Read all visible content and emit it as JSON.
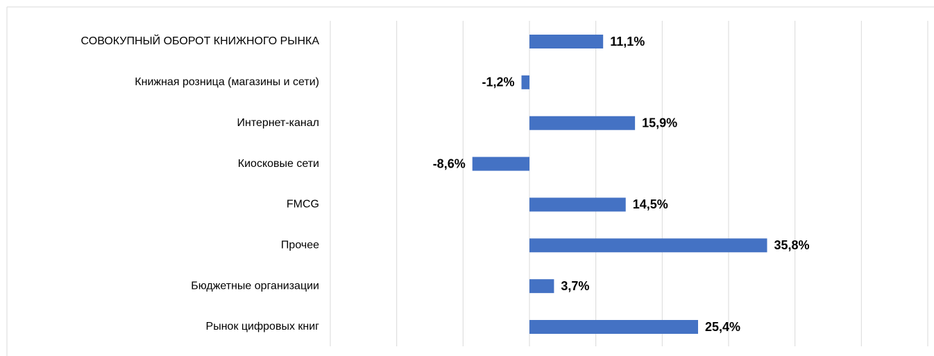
{
  "chart_data": {
    "type": "bar",
    "orientation": "horizontal",
    "categories": [
      "СОВОКУПНЫЙ ОБОРОТ КНИЖНОГО РЫНКА",
      "Книжная розница (магазины и сети)",
      "Интернет-канал",
      "Киосковые сети",
      "FMCG",
      "Прочее",
      "Бюджетные организации",
      "Рынок цифровых книг"
    ],
    "values": [
      11.1,
      -1.2,
      15.9,
      -8.6,
      14.5,
      35.8,
      3.7,
      25.4
    ],
    "value_labels": [
      "11,1%",
      "-1,2%",
      "15,9%",
      "-8,6%",
      "14,5%",
      "35,8%",
      "3,7%",
      "25,4%"
    ],
    "color": "#4472c4",
    "xlim": [
      -30,
      60
    ],
    "xticks": [
      -30,
      -20,
      -10,
      0,
      10,
      20,
      30,
      40,
      50,
      60
    ],
    "grid": true
  }
}
